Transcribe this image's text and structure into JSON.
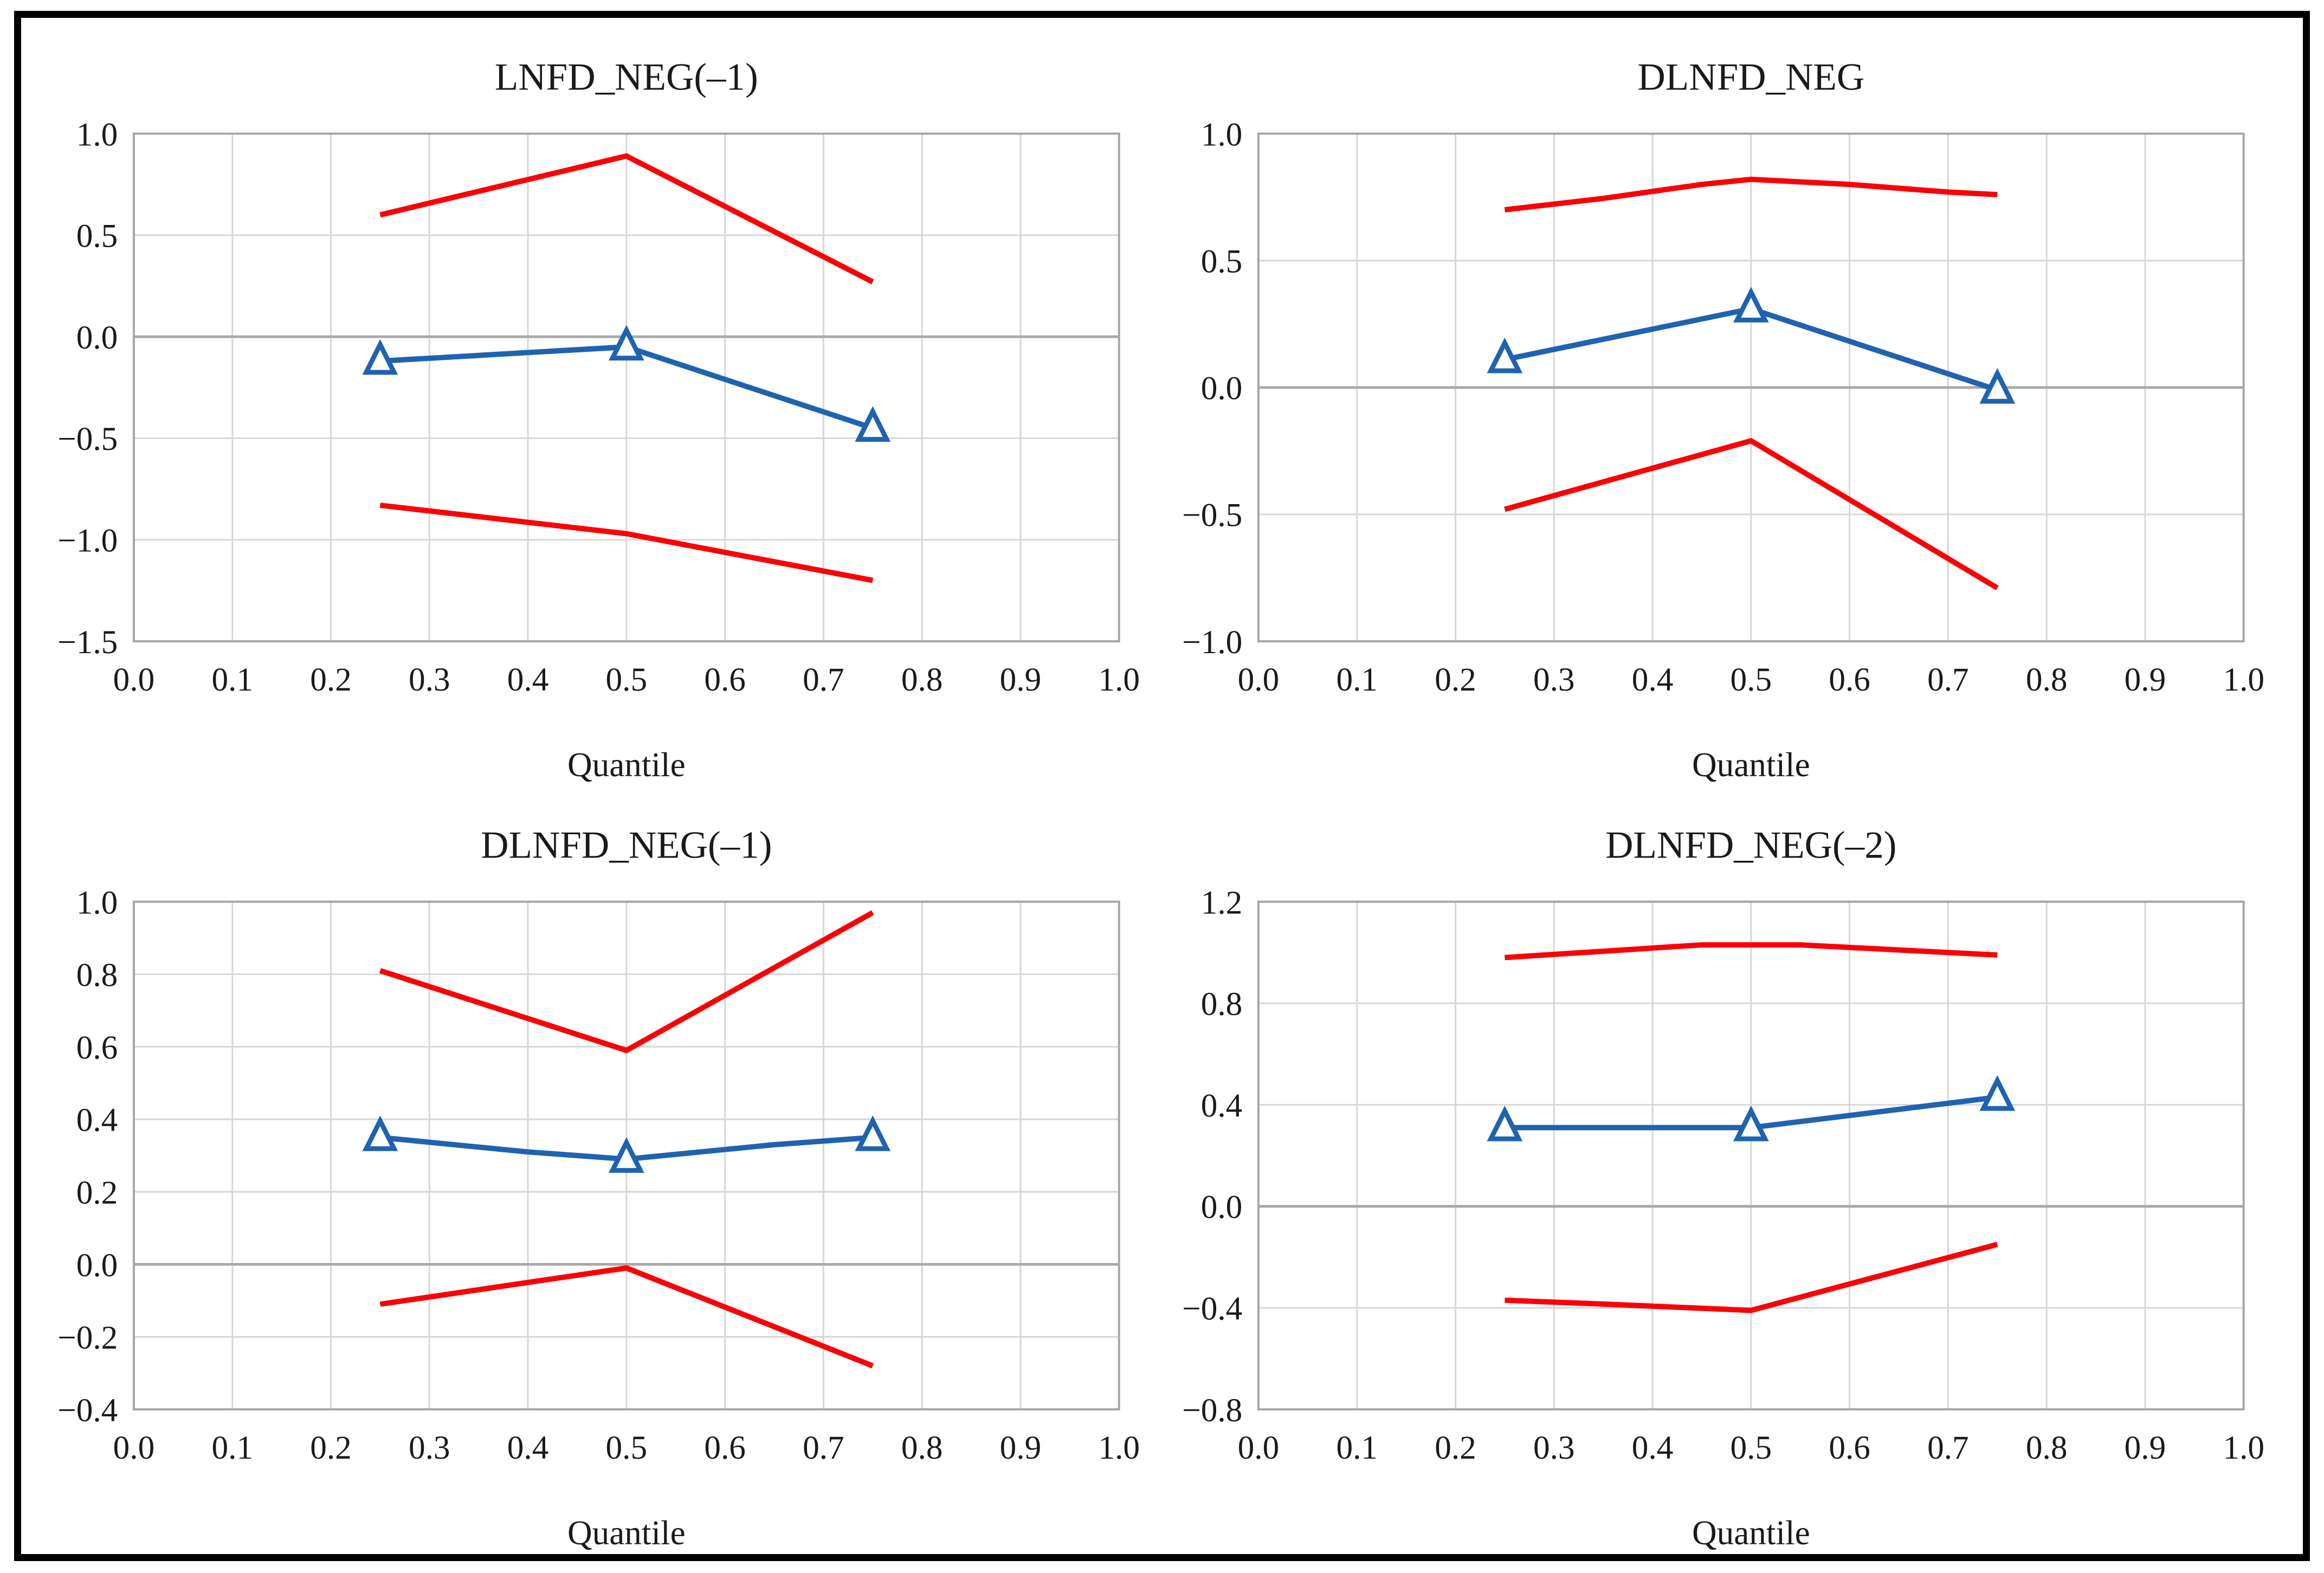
{
  "figure": {
    "name": "quantile-process-estimates",
    "x_axis_title": "Quantile",
    "colors": {
      "estimate_line": "#1F63B0",
      "confidence_band": "#FB0006",
      "grid_line": "#D6D6D6",
      "zero_line": "#A9A9A9",
      "plot_frame": "#A6A6A6",
      "outer_border": "#000000",
      "text": "#1A1A1A",
      "background": "#FFFFFF",
      "marker_fill": "#FFFFFF"
    }
  },
  "chart_data": [
    {
      "type": "line",
      "title": "LNFD_NEG(–1)",
      "xlabel": "Quantile",
      "ylabel": "",
      "xlim": [
        0.0,
        1.0
      ],
      "ylim": [
        -1.5,
        1.0
      ],
      "grid": true,
      "legend_position": "none",
      "xtick_values": [
        0.0,
        0.1,
        0.2,
        0.3,
        0.4,
        0.5,
        0.6,
        0.7,
        0.8,
        0.9,
        1.0
      ],
      "xtick_labels": [
        "0.0",
        "0.1",
        "0.2",
        "0.3",
        "0.4",
        "0.5",
        "0.6",
        "0.7",
        "0.8",
        "0.9",
        "1.0"
      ],
      "ytick_values": [
        1.0,
        0.5,
        0.0,
        -0.5,
        -1.0,
        -1.5
      ],
      "ytick_labels": [
        "1.0",
        "0.5",
        "0.0",
        "−0.5",
        "−1.0",
        "−1.5"
      ],
      "series": [
        {
          "name": "upper-ci",
          "role": "band",
          "x": [
            0.25,
            0.5,
            0.75
          ],
          "y": [
            0.6,
            0.89,
            0.27
          ]
        },
        {
          "name": "lower-ci",
          "role": "band",
          "x": [
            0.25,
            0.5,
            0.75
          ],
          "y": [
            -0.83,
            -0.97,
            -1.2
          ]
        },
        {
          "name": "estimate",
          "role": "estimate",
          "x": [
            0.25,
            0.5,
            0.75
          ],
          "y": [
            -0.12,
            -0.05,
            -0.45
          ],
          "marker_x": [
            0.25,
            0.5,
            0.75
          ],
          "marker_y": [
            -0.12,
            -0.05,
            -0.45
          ]
        }
      ]
    },
    {
      "type": "line",
      "title": "DLNFD_NEG",
      "xlabel": "Quantile",
      "ylabel": "",
      "xlim": [
        0.0,
        1.0
      ],
      "ylim": [
        -1.0,
        1.0
      ],
      "grid": true,
      "legend_position": "none",
      "xtick_values": [
        0.0,
        0.1,
        0.2,
        0.3,
        0.4,
        0.5,
        0.6,
        0.7,
        0.8,
        0.9,
        1.0
      ],
      "xtick_labels": [
        "0.0",
        "0.1",
        "0.2",
        "0.3",
        "0.4",
        "0.5",
        "0.6",
        "0.7",
        "0.8",
        "0.9",
        "1.0"
      ],
      "ytick_values": [
        1.0,
        0.5,
        0.0,
        -0.5,
        -1.0
      ],
      "ytick_labels": [
        "1.0",
        "0.5",
        "0.0",
        "−0.5",
        "−1.0"
      ],
      "series": [
        {
          "name": "upper-ci",
          "role": "band",
          "x": [
            0.25,
            0.35,
            0.45,
            0.5,
            0.6,
            0.7,
            0.75
          ],
          "y": [
            0.7,
            0.745,
            0.8,
            0.82,
            0.8,
            0.77,
            0.76
          ]
        },
        {
          "name": "lower-ci",
          "role": "band",
          "x": [
            0.25,
            0.5,
            0.75
          ],
          "y": [
            -0.48,
            -0.21,
            -0.79
          ]
        },
        {
          "name": "estimate",
          "role": "estimate",
          "x": [
            0.25,
            0.5,
            0.75
          ],
          "y": [
            0.11,
            0.31,
            -0.01
          ],
          "marker_x": [
            0.25,
            0.5,
            0.75
          ],
          "marker_y": [
            0.11,
            0.31,
            -0.01
          ]
        }
      ]
    },
    {
      "type": "line",
      "title": "DLNFD_NEG(–1)",
      "xlabel": "Quantile",
      "ylabel": "",
      "xlim": [
        0.0,
        1.0
      ],
      "ylim": [
        -0.4,
        1.0
      ],
      "grid": true,
      "legend_position": "none",
      "xtick_values": [
        0.0,
        0.1,
        0.2,
        0.3,
        0.4,
        0.5,
        0.6,
        0.7,
        0.8,
        0.9,
        1.0
      ],
      "xtick_labels": [
        "0.0",
        "0.1",
        "0.2",
        "0.3",
        "0.4",
        "0.5",
        "0.6",
        "0.7",
        "0.8",
        "0.9",
        "1.0"
      ],
      "ytick_values": [
        1.0,
        0.8,
        0.6,
        0.4,
        0.2,
        0.0,
        -0.2,
        -0.4
      ],
      "ytick_labels": [
        "1.0",
        "0.8",
        "0.6",
        "0.4",
        "0.2",
        "0.0",
        "−0.2",
        "−0.4"
      ],
      "series": [
        {
          "name": "upper-ci",
          "role": "band",
          "x": [
            0.25,
            0.5,
            0.75
          ],
          "y": [
            0.81,
            0.59,
            0.97
          ]
        },
        {
          "name": "lower-ci",
          "role": "band",
          "x": [
            0.25,
            0.5,
            0.75
          ],
          "y": [
            -0.11,
            -0.01,
            -0.28
          ]
        },
        {
          "name": "estimate",
          "role": "estimate",
          "x": [
            0.25,
            0.4,
            0.5,
            0.65,
            0.75
          ],
          "y": [
            0.35,
            0.31,
            0.29,
            0.33,
            0.35
          ],
          "marker_x": [
            0.25,
            0.5,
            0.75
          ],
          "marker_y": [
            0.35,
            0.29,
            0.35
          ]
        }
      ]
    },
    {
      "type": "line",
      "title": "DLNFD_NEG(–2)",
      "xlabel": "Quantile",
      "ylabel": "",
      "xlim": [
        0.0,
        1.0
      ],
      "ylim": [
        -0.8,
        1.2
      ],
      "grid": true,
      "legend_position": "none",
      "xtick_values": [
        0.0,
        0.1,
        0.2,
        0.3,
        0.4,
        0.5,
        0.6,
        0.7,
        0.8,
        0.9,
        1.0
      ],
      "xtick_labels": [
        "0.0",
        "0.1",
        "0.2",
        "0.3",
        "0.4",
        "0.5",
        "0.6",
        "0.7",
        "0.8",
        "0.9",
        "1.0"
      ],
      "ytick_values": [
        1.2,
        0.8,
        0.4,
        0.0,
        -0.4,
        -0.8
      ],
      "ytick_labels": [
        "1.2",
        "0.8",
        "0.4",
        "0.0",
        "−0.4",
        "−0.8"
      ],
      "series": [
        {
          "name": "upper-ci",
          "role": "band",
          "x": [
            0.25,
            0.35,
            0.45,
            0.55,
            0.65,
            0.75
          ],
          "y": [
            0.98,
            1.005,
            1.03,
            1.03,
            1.01,
            0.99
          ]
        },
        {
          "name": "lower-ci",
          "role": "band",
          "x": [
            0.25,
            0.35,
            0.5,
            0.75
          ],
          "y": [
            -0.37,
            -0.385,
            -0.41,
            -0.15
          ]
        },
        {
          "name": "estimate",
          "role": "estimate",
          "x": [
            0.25,
            0.5,
            0.75
          ],
          "y": [
            0.31,
            0.31,
            0.43
          ],
          "marker_x": [
            0.25,
            0.5,
            0.75
          ],
          "marker_y": [
            0.31,
            0.31,
            0.43
          ]
        }
      ]
    }
  ]
}
